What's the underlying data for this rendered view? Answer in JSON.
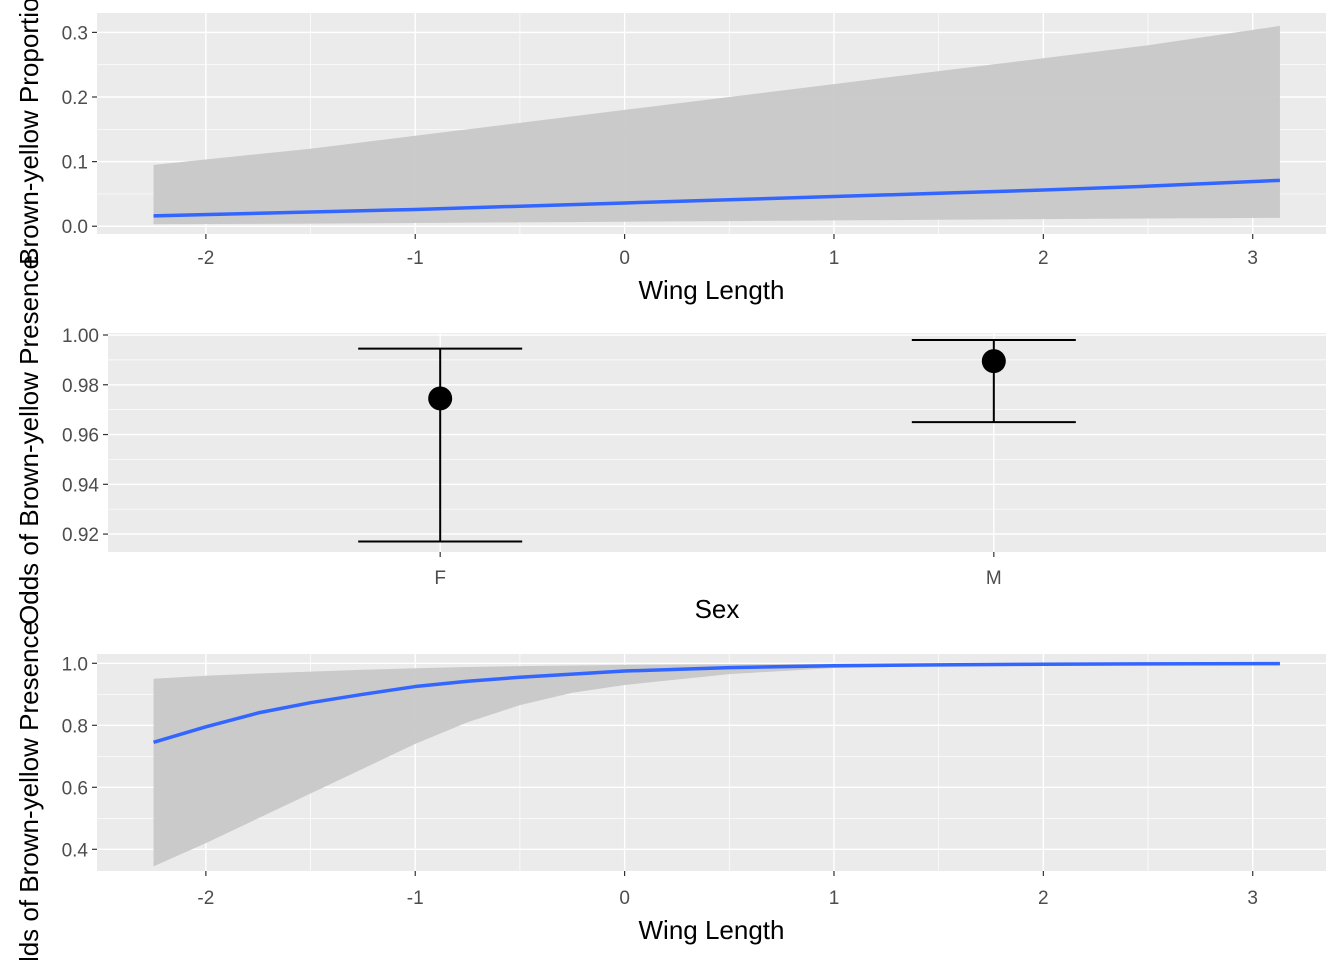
{
  "chart_data": [
    {
      "type": "line",
      "xlabel": "Wing Length",
      "ylabel": "Brown-yellow Proportion",
      "xlim": [
        -2.52,
        3.35
      ],
      "ylim": [
        -0.012,
        0.33
      ],
      "x_ticks": [
        -2,
        -1,
        0,
        1,
        2,
        3
      ],
      "x_tick_labels": [
        "-2",
        "-1",
        "0",
        "1",
        "2",
        "3"
      ],
      "y_ticks": [
        0.0,
        0.1,
        0.2,
        0.3
      ],
      "y_tick_labels": [
        "0.0",
        "0.1",
        "0.2",
        "0.3"
      ],
      "grid": true,
      "line_color": "#3366FF",
      "ribbon_color": "#C8C8C8",
      "x": [
        -2.25,
        -1.5,
        -1.0,
        -0.5,
        0.0,
        0.5,
        1.0,
        1.5,
        2.0,
        2.5,
        3.13
      ],
      "y": [
        0.016,
        0.022,
        0.026,
        0.031,
        0.036,
        0.041,
        0.046,
        0.051,
        0.056,
        0.062,
        0.071
      ],
      "ymin": [
        0.003,
        0.004,
        0.005,
        0.006,
        0.007,
        0.008,
        0.009,
        0.01,
        0.011,
        0.012,
        0.013
      ],
      "ymax": [
        0.095,
        0.12,
        0.14,
        0.16,
        0.18,
        0.2,
        0.22,
        0.24,
        0.26,
        0.28,
        0.31
      ]
    },
    {
      "type": "errorbar",
      "xlabel": "Sex",
      "ylabel": "Odds of Brown-yellow Presence",
      "ylim": [
        0.9128,
        1.0008
      ],
      "y_ticks": [
        0.92,
        0.94,
        0.96,
        0.98,
        1.0
      ],
      "y_tick_labels": [
        "0.92",
        "0.94",
        "0.96",
        "0.98",
        "1.00"
      ],
      "grid": true,
      "categories": [
        "F",
        "M"
      ],
      "values": [
        0.9745,
        0.9895
      ],
      "lower": [
        0.917,
        0.965
      ],
      "upper": [
        0.9945,
        0.998
      ]
    },
    {
      "type": "line",
      "xlabel": "Wing Length",
      "ylabel": "Odds of Brown-yellow Presence",
      "xlim": [
        -2.52,
        3.35
      ],
      "ylim": [
        0.33,
        1.03
      ],
      "x_ticks": [
        -2,
        -1,
        0,
        1,
        2,
        3
      ],
      "x_tick_labels": [
        "-2",
        "-1",
        "0",
        "1",
        "2",
        "3"
      ],
      "y_ticks": [
        0.4,
        0.6,
        0.8,
        1.0
      ],
      "y_tick_labels": [
        "0.4",
        "0.6",
        "0.8",
        "1.0"
      ],
      "grid": true,
      "line_color": "#3366FF",
      "ribbon_color": "#C8C8C8",
      "x": [
        -2.25,
        -2.0,
        -1.75,
        -1.5,
        -1.25,
        -1.0,
        -0.75,
        -0.5,
        -0.25,
        0.0,
        0.5,
        1.0,
        1.5,
        2.0,
        2.5,
        3.13
      ],
      "y": [
        0.745,
        0.795,
        0.84,
        0.873,
        0.9,
        0.925,
        0.942,
        0.955,
        0.965,
        0.975,
        0.986,
        0.992,
        0.995,
        0.997,
        0.998,
        0.999
      ],
      "ymin": [
        0.345,
        0.42,
        0.5,
        0.58,
        0.66,
        0.74,
        0.81,
        0.865,
        0.905,
        0.93,
        0.965,
        0.985,
        0.991,
        0.995,
        0.997,
        0.998
      ],
      "ymax": [
        0.95,
        0.96,
        0.967,
        0.973,
        0.979,
        0.984,
        0.988,
        0.991,
        0.993,
        0.995,
        0.997,
        0.998,
        0.9988,
        0.9992,
        0.9995,
        0.9998
      ]
    }
  ]
}
